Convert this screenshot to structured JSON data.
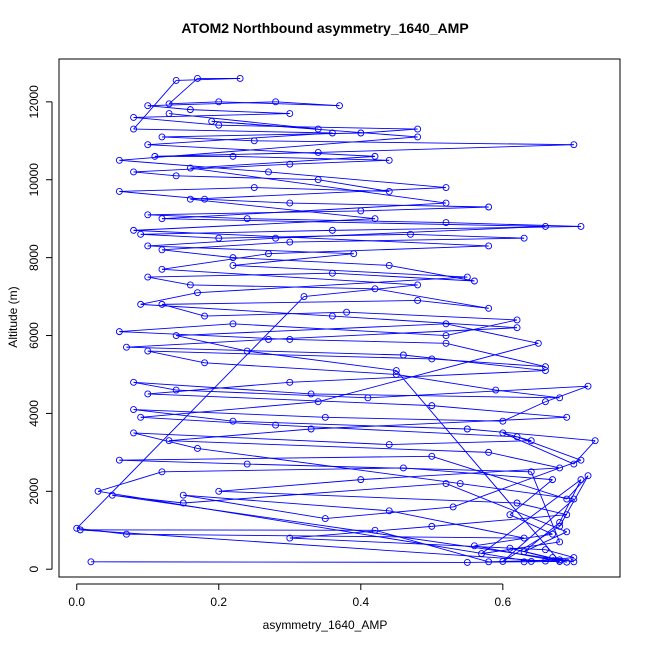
{
  "chart_data": {
    "type": "line",
    "title": "ATOM2 Northbound asymmetry_1640_AMP",
    "xlabel": "asymmetry_1640_AMP",
    "ylabel": "Altitude (m)",
    "xlim": [
      -0.025,
      0.765
    ],
    "ylim": [
      -200,
      13100
    ],
    "x_ticks": [
      0.0,
      0.2,
      0.4,
      0.6
    ],
    "x_tick_labels": [
      "0.0",
      "0.2",
      "0.4",
      "0.6"
    ],
    "y_ticks": [
      0,
      2000,
      4000,
      6000,
      8000,
      10000,
      12000
    ],
    "y_tick_labels": [
      "0",
      "2000",
      "4000",
      "6000",
      "8000",
      "10000",
      "12000"
    ],
    "grid": false,
    "legend": "none",
    "marker": "open-circle",
    "series": [
      {
        "color": "#0000ff",
        "points": [
          [
            0.02,
            190
          ],
          [
            0.55,
            175
          ],
          [
            0.63,
            190
          ],
          [
            0.68,
            200
          ],
          [
            0.66,
            210
          ],
          [
            0.005,
            1010
          ],
          [
            0.42,
            1000
          ],
          [
            0.58,
            190
          ],
          [
            0.68,
            240
          ],
          [
            0.61,
            540
          ],
          [
            0.69,
            180
          ],
          [
            0.67,
            300
          ],
          [
            0.7,
            190
          ],
          [
            0.05,
            1900
          ],
          [
            0.15,
            1700
          ],
          [
            0.52,
            2200
          ],
          [
            0.69,
            960
          ],
          [
            0.63,
            450
          ],
          [
            0.68,
            1200
          ],
          [
            0.71,
            2300
          ],
          [
            0.57,
            400
          ],
          [
            0.68,
            700
          ],
          [
            0.64,
            2500
          ],
          [
            0.24,
            2700
          ],
          [
            0.06,
            2800
          ],
          [
            0.5,
            2900
          ],
          [
            0.69,
            1800
          ],
          [
            0.72,
            2400
          ],
          [
            0.68,
            1100
          ],
          [
            0.6,
            200
          ],
          [
            0.7,
            1800
          ],
          [
            0.54,
            2200
          ],
          [
            0.17,
            3100
          ],
          [
            0.08,
            3500
          ],
          [
            0.44,
            3200
          ],
          [
            0.64,
            3300
          ],
          [
            0.6,
            3500
          ],
          [
            0.7,
            2700
          ],
          [
            0.73,
            3300
          ],
          [
            0.55,
            3600
          ],
          [
            0.22,
            3800
          ],
          [
            0.08,
            4100
          ],
          [
            0.35,
            3900
          ],
          [
            0.6,
            3800
          ],
          [
            0.66,
            4300
          ],
          [
            0.72,
            4700
          ],
          [
            0.41,
            4400
          ],
          [
            0.14,
            4600
          ],
          [
            0.08,
            4800
          ],
          [
            0.33,
            4500
          ],
          [
            0.68,
            4400
          ],
          [
            0.59,
            4600
          ],
          [
            0.45,
            5000
          ],
          [
            0.18,
            5300
          ],
          [
            0.1,
            5600
          ],
          [
            0.5,
            5400
          ],
          [
            0.66,
            5200
          ],
          [
            0.52,
            5800
          ],
          [
            0.3,
            5900
          ],
          [
            0.06,
            6100
          ],
          [
            0.22,
            6300
          ],
          [
            0.52,
            6000
          ],
          [
            0.62,
            6400
          ],
          [
            0.38,
            6600
          ],
          [
            0.18,
            6500
          ],
          [
            0.12,
            6800
          ],
          [
            0.48,
            6900
          ],
          [
            0.58,
            6700
          ],
          [
            0.42,
            7200
          ],
          [
            0.16,
            7300
          ],
          [
            0.1,
            7500
          ],
          [
            0.36,
            7600
          ],
          [
            0.56,
            7400
          ],
          [
            0.44,
            7800
          ],
          [
            0.22,
            8000
          ],
          [
            0.12,
            8200
          ],
          [
            0.3,
            8400
          ],
          [
            0.63,
            8500
          ],
          [
            0.47,
            8600
          ],
          [
            0.2,
            8500
          ],
          [
            0.09,
            8600
          ],
          [
            0.36,
            8700
          ],
          [
            0.71,
            8800
          ],
          [
            0.52,
            8900
          ],
          [
            0.24,
            9000
          ],
          [
            0.1,
            9100
          ],
          [
            0.4,
            9200
          ],
          [
            0.58,
            9300
          ],
          [
            0.3,
            9400
          ],
          [
            0.18,
            9500
          ],
          [
            0.06,
            9700
          ],
          [
            0.25,
            9800
          ],
          [
            0.44,
            9700
          ],
          [
            0.34,
            10000
          ],
          [
            0.14,
            10100
          ],
          [
            0.08,
            10200
          ],
          [
            0.3,
            10400
          ],
          [
            0.44,
            10500
          ],
          [
            0.22,
            10600
          ],
          [
            0.11,
            10600
          ],
          [
            0.34,
            10700
          ],
          [
            0.7,
            10900
          ],
          [
            0.25,
            11000
          ],
          [
            0.12,
            11100
          ],
          [
            0.4,
            11200
          ],
          [
            0.48,
            11300
          ],
          [
            0.2,
            11400
          ],
          [
            0.08,
            11600
          ],
          [
            0.3,
            11700
          ],
          [
            0.16,
            11800
          ],
          [
            0.1,
            11900
          ],
          [
            0.28,
            12000
          ],
          [
            0.37,
            11900
          ],
          [
            0.2,
            12000
          ],
          [
            0.13,
            11950
          ],
          [
            0.17,
            12600
          ],
          [
            0.23,
            12600
          ],
          [
            0.14,
            12550
          ],
          [
            0.08,
            11300
          ],
          [
            0.36,
            11200
          ],
          [
            0.1,
            10900
          ],
          [
            0.42,
            10600
          ],
          [
            0.16,
            10300
          ],
          [
            0.52,
            9400
          ],
          [
            0.12,
            9000
          ],
          [
            0.66,
            8800
          ],
          [
            0.28,
            8500
          ],
          [
            0.1,
            8300
          ],
          [
            0.39,
            8100
          ],
          [
            0.22,
            7800
          ],
          [
            0.55,
            7500
          ],
          [
            0.17,
            7100
          ],
          [
            0.09,
            6800
          ],
          [
            0.36,
            6500
          ],
          [
            0.62,
            6200
          ],
          [
            0.27,
            5900
          ],
          [
            0.07,
            5700
          ],
          [
            0.46,
            5500
          ],
          [
            0.66,
            5100
          ],
          [
            0.3,
            4800
          ],
          [
            0.1,
            4500
          ],
          [
            0.5,
            4200
          ],
          [
            0.69,
            3900
          ],
          [
            0.33,
            3600
          ],
          [
            0.13,
            3300
          ],
          [
            0.58,
            3000
          ],
          [
            0.68,
            2600
          ],
          [
            0.4,
            2300
          ],
          [
            0.2,
            2000
          ],
          [
            0.62,
            1700
          ],
          [
            0.69,
            1400
          ],
          [
            0.5,
            1100
          ],
          [
            0.3,
            800
          ],
          [
            0.66,
            500
          ],
          [
            0.7,
            300
          ],
          [
            0.64,
            200
          ],
          [
            0.03,
            2000
          ],
          [
            0.12,
            2500
          ],
          [
            0.46,
            2600
          ],
          [
            0.67,
            2300
          ],
          [
            0.61,
            1400
          ],
          [
            0.67,
            900
          ],
          [
            0.56,
            600
          ],
          [
            0.68,
            200
          ],
          [
            0.45,
            5100
          ],
          [
            0.24,
            5600
          ],
          [
            0.14,
            6000
          ],
          [
            0.52,
            6300
          ],
          [
            0.65,
            5800
          ],
          [
            0.34,
            4300
          ],
          [
            0.09,
            3900
          ],
          [
            0.28,
            3700
          ],
          [
            0.62,
            3400
          ],
          [
            0.71,
            2800
          ],
          [
            0.53,
            1600
          ],
          [
            0.35,
            1300
          ],
          [
            0.15,
            1900
          ],
          [
            0.44,
            1500
          ],
          [
            0.63,
            800
          ],
          [
            0.07,
            900
          ],
          [
            0.0,
            1050
          ],
          [
            0.32,
            7000
          ],
          [
            0.48,
            7300
          ],
          [
            0.12,
            7700
          ],
          [
            0.27,
            8100
          ],
          [
            0.58,
            8300
          ],
          [
            0.08,
            8700
          ],
          [
            0.42,
            9000
          ],
          [
            0.16,
            9500
          ],
          [
            0.52,
            9800
          ],
          [
            0.27,
            10200
          ],
          [
            0.06,
            10500
          ],
          [
            0.48,
            11100
          ],
          [
            0.19,
            11500
          ],
          [
            0.34,
            11300
          ],
          [
            0.13,
            11700
          ]
        ]
      }
    ]
  }
}
